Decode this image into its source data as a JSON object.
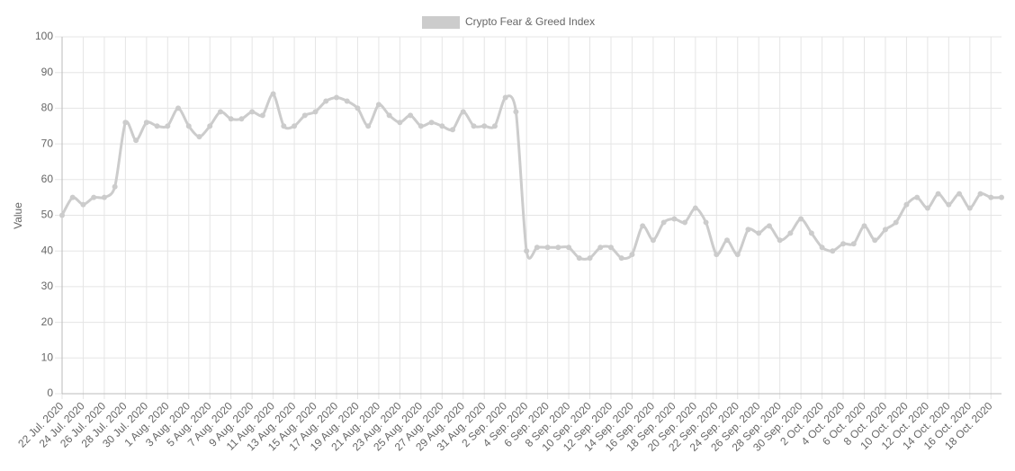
{
  "chart_data": {
    "type": "line",
    "y_label": "Value",
    "categories": [
      "22 Jul. 2020",
      null,
      "24 Jul. 2020",
      null,
      "26 Jul. 2020",
      null,
      "28 Jul. 2020",
      null,
      "30 Jul. 2020",
      null,
      "1 Aug. 2020",
      null,
      "3 Aug. 2020",
      null,
      "5 Aug. 2020",
      null,
      "7 Aug. 2020",
      null,
      "9 Aug. 2020",
      null,
      "11 Aug. 2020",
      null,
      "13 Aug. 2020",
      null,
      "15 Aug. 2020",
      null,
      "17 Aug. 2020",
      null,
      "19 Aug. 2020",
      null,
      "21 Aug. 2020",
      null,
      "23 Aug. 2020",
      null,
      "25 Aug. 2020",
      null,
      "27 Aug. 2020",
      null,
      "29 Aug. 2020",
      null,
      "31 Aug. 2020",
      null,
      "2 Sep. 2020",
      null,
      "4 Sep. 2020",
      null,
      "6 Sep. 2020",
      null,
      "8 Sep. 2020",
      null,
      "10 Sep. 2020",
      null,
      "12 Sep. 2020",
      null,
      "14 Sep. 2020",
      null,
      "16 Sep. 2020",
      null,
      "18 Sep. 2020",
      null,
      "20 Sep. 2020",
      null,
      "22 Sep. 2020",
      null,
      "24 Sep. 2020",
      null,
      "26 Sep. 2020",
      null,
      "28 Sep. 2020",
      null,
      "30 Sep. 2020",
      null,
      "2 Oct. 2020",
      null,
      "4 Oct. 2020",
      null,
      "6 Oct. 2020",
      null,
      "8 Oct. 2020",
      null,
      "10 Oct. 2020",
      null,
      "12 Oct. 2020",
      null,
      "14 Oct. 2020",
      null,
      "16 Oct. 2020",
      null,
      "18 Oct. 2020",
      null
    ],
    "series": [
      {
        "name": "Crypto Fear & Greed Index",
        "color": "#cccccc",
        "values": [
          50,
          55,
          53,
          55,
          55,
          58,
          76,
          71,
          76,
          75,
          75,
          80,
          75,
          72,
          75,
          79,
          77,
          77,
          79,
          78,
          84,
          75,
          75,
          78,
          79,
          82,
          83,
          82,
          80,
          75,
          81,
          78,
          76,
          78,
          75,
          76,
          75,
          74,
          79,
          75,
          75,
          75,
          83,
          79,
          40,
          41,
          41,
          41,
          41,
          38,
          38,
          41,
          41,
          38,
          39,
          47,
          43,
          48,
          49,
          48,
          52,
          48,
          39,
          43,
          39,
          46,
          45,
          47,
          43,
          45,
          49,
          45,
          41,
          40,
          42,
          42,
          47,
          43,
          46,
          48,
          53,
          55,
          52,
          56,
          53,
          56,
          52,
          56,
          55,
          55
        ]
      }
    ],
    "ylim": [
      0,
      100
    ],
    "yticks": [
      0,
      10,
      20,
      30,
      40,
      50,
      60,
      70,
      80,
      90,
      100
    ],
    "grid": true,
    "legend": "top"
  }
}
